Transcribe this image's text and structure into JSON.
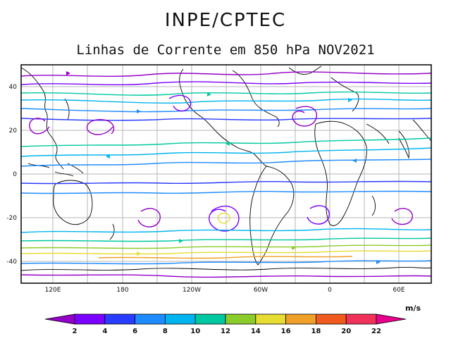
{
  "header": {
    "org": "INPE/CPTEC",
    "title": "Linhas de Corrente em 850 hPa NOV2021"
  },
  "map": {
    "lat_labels": [
      "40",
      "20",
      "0",
      "-20",
      "-40"
    ],
    "lon_labels": [
      "120E",
      "180",
      "120W",
      "60W",
      "0",
      "60E"
    ],
    "grid": true
  },
  "colorbar": {
    "unit": "m/s",
    "ticks": [
      "2",
      "4",
      "6",
      "8",
      "10",
      "12",
      "14",
      "16",
      "18",
      "20",
      "22"
    ],
    "colors": [
      "#9400c8",
      "#7a00ff",
      "#2a3cff",
      "#1e8cff",
      "#00b4f0",
      "#00c8a0",
      "#8ccc2a",
      "#e6dc32",
      "#f0a028",
      "#f05a1e",
      "#f0325a",
      "#e6008c"
    ]
  }
}
